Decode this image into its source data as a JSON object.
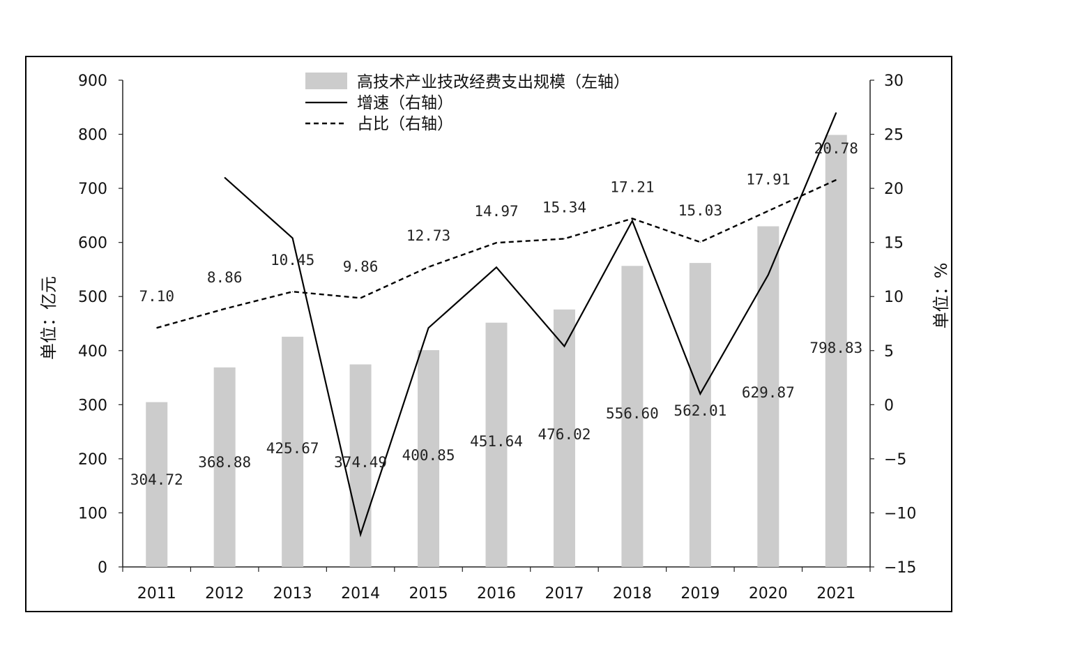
{
  "chart_data": {
    "type": "bar",
    "categories": [
      "2011",
      "2012",
      "2013",
      "2014",
      "2015",
      "2016",
      "2017",
      "2018",
      "2019",
      "2020",
      "2021"
    ],
    "series": [
      {
        "name": "高技术产业技改经费支出规模（左轴）",
        "kind": "bar",
        "axis": "left",
        "values": [
          304.72,
          368.88,
          425.67,
          374.49,
          400.85,
          451.64,
          476.02,
          556.6,
          562.01,
          629.87,
          798.83
        ],
        "labels": [
          "304.72",
          "368.88",
          "425.67",
          "374.49",
          "400.85",
          "451.64",
          "476.02",
          "556.60",
          "562.01",
          "629.87",
          "798.83"
        ],
        "color": "#cccccc"
      },
      {
        "name": "增速（右轴）",
        "kind": "line",
        "axis": "right",
        "style": "solid",
        "values": [
          null,
          21.0,
          15.4,
          -12.0,
          7.1,
          12.7,
          5.4,
          17.0,
          1.0,
          12.0,
          27.0
        ],
        "color": "#000000"
      },
      {
        "name": "占比（右轴）",
        "kind": "line",
        "axis": "right",
        "style": "dashed",
        "values": [
          7.1,
          8.86,
          10.45,
          9.86,
          12.73,
          14.97,
          15.34,
          17.21,
          15.03,
          17.91,
          20.78
        ],
        "labels": [
          "7.10",
          "8.86",
          "10.45",
          "9.86",
          "12.73",
          "14.97",
          "15.34",
          "17.21",
          "15.03",
          "17.91",
          "20.78"
        ],
        "color": "#000000"
      }
    ],
    "left_axis": {
      "label": "单位：亿元",
      "min": 0,
      "max": 900,
      "ticks": [
        0,
        100,
        200,
        300,
        400,
        500,
        600,
        700,
        800,
        900
      ]
    },
    "right_axis": {
      "label": "单位：%",
      "min": -15,
      "max": 30,
      "ticks": [
        -15,
        -10,
        -5,
        0,
        5,
        10,
        15,
        20,
        25,
        30
      ]
    },
    "legend_position": "top-center",
    "grid": false
  }
}
